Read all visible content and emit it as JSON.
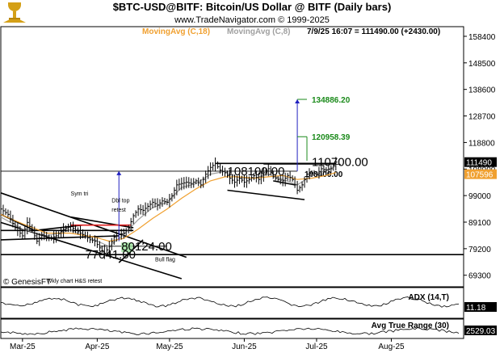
{
  "header": {
    "title": "$BTC-USD@BITF:  Bitcoin/US Dollar @ BITF  (Daily bars)",
    "subtitle": "www.TradeNavigator.com © 1999-2025",
    "ma1_label": "MovingAvg (C,18)",
    "ma2_label": "MovingAvg (C,8)",
    "status": "7/9/25 16:07 = 111490.00 (+2430.00)",
    "copyright": "© GenesisFT",
    "logo_icon": "trophy-logo-icon"
  },
  "colors": {
    "ma18": "#f0a030",
    "ma8": "#a0a0a0",
    "target": "#1a8a1a",
    "projection": "#2020c0",
    "resistance": "#e02020",
    "price_tag_bg": "#000000",
    "ma_tag_bg": "#f0a030"
  },
  "chart_data": {
    "type": "line",
    "title": "$BTC-USD@BITF:  Bitcoin/US Dollar @ BITF  (Daily bars)",
    "y_ticks": [
      "158400",
      "148500",
      "138600",
      "128700",
      "118800",
      "108900",
      "99000",
      "89100",
      "79200",
      "69300"
    ],
    "ylim": [
      65000,
      162000
    ],
    "x_ticks": [
      {
        "label": "Mar-25",
        "day": 0
      },
      {
        "label": "Apr-25",
        "day": 31
      },
      {
        "label": "May-25",
        "day": 61
      },
      {
        "label": "Jun-25",
        "day": 92
      },
      {
        "label": "Jul-25",
        "day": 122
      },
      {
        "label": "Aug-25",
        "day": 153
      }
    ],
    "xlim": [
      -9,
      183
    ],
    "price_path": [
      [
        -9,
        94000
      ],
      [
        -6,
        92000
      ],
      [
        -3,
        87000
      ],
      [
        0,
        84000
      ],
      [
        2,
        89000
      ],
      [
        4,
        86000
      ],
      [
        6,
        82000
      ],
      [
        8,
        84500
      ],
      [
        11,
        83000
      ],
      [
        14,
        84000
      ],
      [
        17,
        86500
      ],
      [
        20,
        87500
      ],
      [
        23,
        85500
      ],
      [
        26,
        84000
      ],
      [
        28,
        82500
      ],
      [
        30,
        82000
      ],
      [
        32,
        79500
      ],
      [
        34,
        77500
      ],
      [
        36,
        80000
      ],
      [
        38,
        83500
      ],
      [
        40,
        84500
      ],
      [
        42,
        85000
      ],
      [
        44,
        87000
      ],
      [
        46,
        91500
      ],
      [
        48,
        94000
      ],
      [
        50,
        93500
      ],
      [
        52,
        95000
      ],
      [
        54,
        96500
      ],
      [
        56,
        95500
      ],
      [
        58,
        97000
      ],
      [
        60,
        96500
      ],
      [
        62,
        99000
      ],
      [
        64,
        103000
      ],
      [
        66,
        103500
      ],
      [
        68,
        104000
      ],
      [
        70,
        103500
      ],
      [
        72,
        104500
      ],
      [
        74,
        103000
      ],
      [
        76,
        107000
      ],
      [
        78,
        109500
      ],
      [
        80,
        111000
      ],
      [
        82,
        108500
      ],
      [
        84,
        107500
      ],
      [
        86,
        105500
      ],
      [
        88,
        104000
      ],
      [
        90,
        105500
      ],
      [
        92,
        104000
      ],
      [
        94,
        105000
      ],
      [
        96,
        106500
      ],
      [
        98,
        105000
      ],
      [
        100,
        107500
      ],
      [
        102,
        109000
      ],
      [
        104,
        106000
      ],
      [
        106,
        105000
      ],
      [
        108,
        104500
      ],
      [
        110,
        106500
      ],
      [
        112,
        105000
      ],
      [
        114,
        101000
      ],
      [
        116,
        103000
      ],
      [
        118,
        107000
      ],
      [
        120,
        107500
      ],
      [
        122,
        107000
      ],
      [
        124,
        109000
      ],
      [
        126,
        108500
      ],
      [
        128,
        109000
      ],
      [
        130,
        111490
      ]
    ],
    "ma18_path": [
      [
        -9,
        92000
      ],
      [
        0,
        88500
      ],
      [
        10,
        85000
      ],
      [
        20,
        85000
      ],
      [
        30,
        83500
      ],
      [
        36,
        82000
      ],
      [
        42,
        83000
      ],
      [
        48,
        86500
      ],
      [
        54,
        90500
      ],
      [
        60,
        94000
      ],
      [
        66,
        98000
      ],
      [
        72,
        101500
      ],
      [
        78,
        104500
      ],
      [
        84,
        106000
      ],
      [
        90,
        106000
      ],
      [
        96,
        105500
      ],
      [
        102,
        106000
      ],
      [
        108,
        106500
      ],
      [
        114,
        105000
      ],
      [
        120,
        105500
      ],
      [
        126,
        106500
      ],
      [
        130,
        107596
      ]
    ],
    "ma8_path": [
      [
        -9,
        91000
      ],
      [
        0,
        86500
      ],
      [
        10,
        84000
      ],
      [
        20,
        86000
      ],
      [
        30,
        82500
      ],
      [
        36,
        80000
      ],
      [
        42,
        84500
      ],
      [
        48,
        90000
      ],
      [
        54,
        94500
      ],
      [
        60,
        96500
      ],
      [
        66,
        102000
      ],
      [
        72,
        103500
      ],
      [
        78,
        107000
      ],
      [
        84,
        108000
      ],
      [
        90,
        105500
      ],
      [
        96,
        105500
      ],
      [
        102,
        107000
      ],
      [
        108,
        105000
      ],
      [
        114,
        103000
      ],
      [
        120,
        106500
      ],
      [
        126,
        108500
      ],
      [
        130,
        110000
      ]
    ],
    "ma18_last": "107596",
    "last_price": "111490",
    "levels": [
      {
        "label": "108100.00",
        "value": 108100,
        "style": "big"
      },
      {
        "label": "110700.00",
        "value": 110700,
        "style": "big"
      },
      {
        "label": "108400.00",
        "value": 108400,
        "style": "mid"
      },
      {
        "label": "80124.00",
        "value": 80124,
        "style": "big"
      },
      {
        "label": "77041.00",
        "value": 77041,
        "style": "big"
      }
    ],
    "targets": [
      {
        "label": "134886.20",
        "value": 134886.2
      },
      {
        "label": "120958.39",
        "value": 120958.39
      }
    ],
    "annotations": [
      {
        "label": "Sym tri",
        "day": 20,
        "value": 99000
      },
      {
        "label": "Dbl top",
        "day": 37,
        "value": 96500
      },
      {
        "label": "retest",
        "day": 37,
        "value": 93000
      },
      {
        "label": "Bull flag",
        "day": 55,
        "value": 74500
      },
      {
        "label": "Wkly chart H&S retest",
        "day": 10,
        "value": 66500
      }
    ],
    "indicators": [
      {
        "name": "ADX (14,T)",
        "last": "11.18"
      },
      {
        "name": "Avg True Range (30)",
        "last": "2529.03"
      }
    ]
  }
}
